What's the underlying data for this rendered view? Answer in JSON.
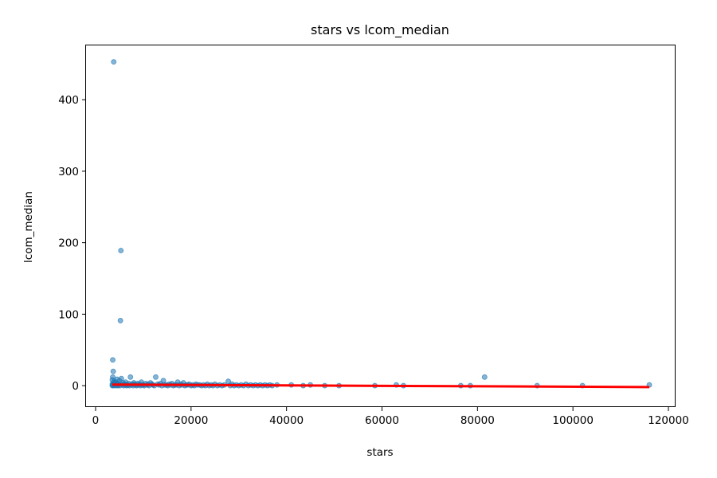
{
  "chart_data": {
    "type": "scatter",
    "title": "stars vs lcom_median",
    "xlabel": "stars",
    "ylabel": "lcom_median",
    "xlim": [
      -2000,
      121500
    ],
    "ylim": [
      -30,
      476
    ],
    "xticks": [
      0,
      20000,
      40000,
      60000,
      80000,
      100000,
      120000
    ],
    "xtick_labels": [
      "0",
      "20000",
      "40000",
      "60000",
      "80000",
      "100000",
      "120000"
    ],
    "yticks": [
      0,
      100,
      200,
      300,
      400
    ],
    "ytick_labels": [
      "0",
      "100",
      "200",
      "300",
      "400"
    ],
    "grid": false,
    "colors": {
      "points": "#1f77b4",
      "fit_line": "#ff0000"
    },
    "series": [
      {
        "type": "scatter",
        "points": [
          [
            3800,
            453
          ],
          [
            5300,
            189
          ],
          [
            5200,
            91
          ],
          [
            3600,
            36
          ],
          [
            3700,
            20
          ],
          [
            3600,
            12
          ],
          [
            3500,
            8
          ],
          [
            3900,
            6
          ],
          [
            4200,
            5
          ],
          [
            4500,
            9
          ],
          [
            4800,
            3
          ],
          [
            5000,
            7
          ],
          [
            5400,
            10
          ],
          [
            5700,
            4
          ],
          [
            6000,
            2
          ],
          [
            6300,
            5
          ],
          [
            6600,
            1
          ],
          [
            7000,
            3
          ],
          [
            7300,
            12
          ],
          [
            7700,
            2
          ],
          [
            8000,
            4
          ],
          [
            8400,
            1
          ],
          [
            8800,
            3
          ],
          [
            9200,
            2
          ],
          [
            9600,
            5
          ],
          [
            10000,
            1
          ],
          [
            10500,
            3
          ],
          [
            11000,
            2
          ],
          [
            11500,
            4
          ],
          [
            12000,
            1
          ],
          [
            12600,
            12
          ],
          [
            13000,
            2
          ],
          [
            13600,
            3
          ],
          [
            14200,
            7
          ],
          [
            14800,
            1
          ],
          [
            15400,
            2
          ],
          [
            16000,
            3
          ],
          [
            16600,
            1
          ],
          [
            17200,
            5
          ],
          [
            17800,
            2
          ],
          [
            18400,
            4
          ],
          [
            19000,
            1
          ],
          [
            19600,
            2
          ],
          [
            20300,
            1
          ],
          [
            21000,
            2
          ],
          [
            21800,
            1
          ],
          [
            22600,
            1
          ],
          [
            23400,
            2
          ],
          [
            24200,
            1
          ],
          [
            25000,
            2
          ],
          [
            26000,
            1
          ],
          [
            27000,
            1
          ],
          [
            27800,
            6
          ],
          [
            28600,
            2
          ],
          [
            29500,
            1
          ],
          [
            30500,
            1
          ],
          [
            31500,
            2
          ],
          [
            32500,
            1
          ],
          [
            33500,
            1
          ],
          [
            34500,
            1
          ],
          [
            35500,
            1
          ],
          [
            36500,
            1
          ],
          [
            38000,
            1
          ],
          [
            41000,
            1
          ],
          [
            43500,
            0
          ],
          [
            45000,
            1
          ],
          [
            48000,
            0
          ],
          [
            51000,
            0
          ],
          [
            58500,
            0
          ],
          [
            63000,
            1
          ],
          [
            64500,
            0
          ],
          [
            76500,
            0
          ],
          [
            78500,
            0
          ],
          [
            81500,
            12
          ],
          [
            92500,
            0
          ],
          [
            102000,
            0
          ],
          [
            116000,
            1
          ],
          [
            3500,
            0
          ],
          [
            3500,
            2
          ],
          [
            3600,
            1
          ],
          [
            3700,
            4
          ],
          [
            3800,
            0
          ],
          [
            3900,
            2
          ],
          [
            4000,
            1
          ],
          [
            4100,
            3
          ],
          [
            4300,
            0
          ],
          [
            4400,
            2
          ],
          [
            4600,
            1
          ],
          [
            4700,
            0
          ],
          [
            4900,
            2
          ],
          [
            5100,
            0
          ],
          [
            5600,
            1
          ],
          [
            5900,
            0
          ],
          [
            6200,
            2
          ],
          [
            6500,
            0
          ],
          [
            6800,
            1
          ],
          [
            7100,
            0
          ],
          [
            7500,
            1
          ],
          [
            7900,
            0
          ],
          [
            8200,
            2
          ],
          [
            8600,
            0
          ],
          [
            9000,
            1
          ],
          [
            9400,
            0
          ],
          [
            9800,
            1
          ],
          [
            10200,
            0
          ],
          [
            10800,
            1
          ],
          [
            11200,
            0
          ],
          [
            11800,
            2
          ],
          [
            12300,
            0
          ],
          [
            13300,
            1
          ],
          [
            13900,
            0
          ],
          [
            14500,
            1
          ],
          [
            15100,
            0
          ],
          [
            15700,
            1
          ],
          [
            16300,
            0
          ],
          [
            16900,
            1
          ],
          [
            17500,
            0
          ],
          [
            18100,
            1
          ],
          [
            18700,
            0
          ],
          [
            19300,
            1
          ],
          [
            20000,
            0
          ],
          [
            20700,
            0
          ],
          [
            21400,
            1
          ],
          [
            22200,
            0
          ],
          [
            23000,
            0
          ],
          [
            23800,
            0
          ],
          [
            24600,
            0
          ],
          [
            25500,
            0
          ],
          [
            26500,
            0
          ],
          [
            28200,
            0
          ],
          [
            29000,
            0
          ],
          [
            30000,
            0
          ],
          [
            31000,
            0
          ],
          [
            32000,
            0
          ],
          [
            33000,
            0
          ],
          [
            34000,
            0
          ],
          [
            35000,
            0
          ],
          [
            36000,
            0
          ],
          [
            37000,
            0
          ]
        ]
      },
      {
        "type": "line",
        "name": "",
        "x": [
          3500,
          116000
        ],
        "y": [
          1.5,
          -2.0
        ]
      }
    ]
  }
}
